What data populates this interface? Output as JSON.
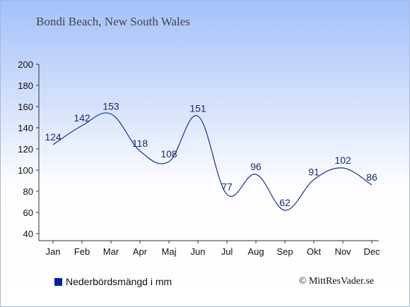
{
  "title": "Bondi Beach, New South Wales",
  "legend_label": "Nederbördsmängd i mm",
  "credit": "© MittResVader.se",
  "colors": {
    "line": "#1a2f8f",
    "legend_swatch": "#0022aa",
    "label": "#1c2a6b"
  },
  "chart_data": {
    "type": "line",
    "categories": [
      "Jan",
      "Feb",
      "Mar",
      "Apr",
      "Maj",
      "Jun",
      "Jul",
      "Aug",
      "Sep",
      "Okt",
      "Nov",
      "Dec"
    ],
    "series": [
      {
        "name": "Nederbördsmängd i mm",
        "values": [
          124,
          142,
          153,
          118,
          108,
          151,
          77,
          96,
          62,
          91,
          102,
          86
        ]
      }
    ],
    "ylim": [
      40,
      200
    ],
    "yticks": [
      40,
      60,
      80,
      100,
      120,
      140,
      160,
      180,
      200
    ],
    "grid": false,
    "legend_position": "bottom-left"
  }
}
